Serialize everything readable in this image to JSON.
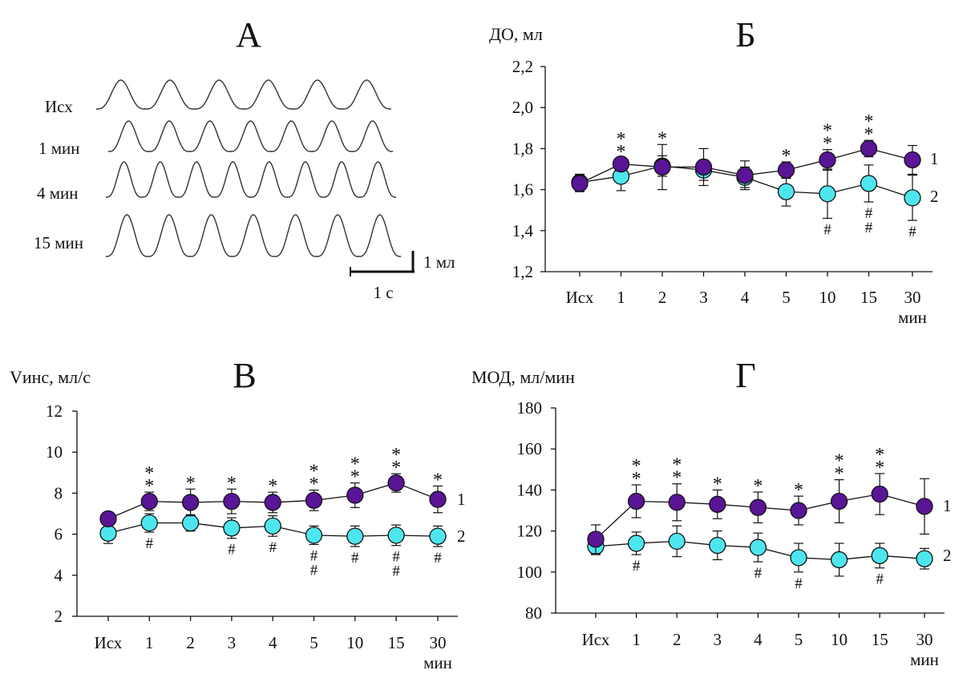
{
  "x_categories": [
    "Исх",
    "1",
    "2",
    "3",
    "4",
    "5",
    "10",
    "15",
    "30"
  ],
  "x_unit": "мин",
  "series_names": [
    "1",
    "2"
  ],
  "colors": {
    "series1": "#5a1496",
    "series2": "#4ee6ee",
    "stroke": "#111111"
  },
  "panel_a": {
    "letter": "А",
    "traces": [
      "Исх",
      "1 мин",
      "4 мин",
      "15 мин"
    ],
    "scale_volume": "1 мл",
    "scale_time": "1 с"
  },
  "chart_data": [
    {
      "id": "b",
      "letter": "Б",
      "type": "line",
      "ylabel": "ДО, мл",
      "yticks": [
        "1,2",
        "1,4",
        "1,6",
        "1,8",
        "2,0",
        "2,2"
      ],
      "ylim": [
        1.2,
        2.2
      ],
      "categories": [
        "Исх",
        "1",
        "2",
        "3",
        "4",
        "5",
        "10",
        "15",
        "30"
      ],
      "series": [
        {
          "name": "1",
          "values": [
            1.63,
            1.725,
            1.71,
            1.71,
            1.67,
            1.695,
            1.745,
            1.8,
            1.745
          ],
          "errors": [
            0.04,
            0.03,
            0.11,
            0.09,
            0.07,
            0.04,
            0.05,
            0.04,
            0.07
          ],
          "marks": [
            "",
            "* *",
            "*",
            "",
            "",
            "*",
            "* *",
            "* *",
            ""
          ]
        },
        {
          "name": "2",
          "values": [
            1.635,
            1.665,
            1.715,
            1.695,
            1.66,
            1.59,
            1.58,
            1.63,
            1.56
          ],
          "errors": [
            0.04,
            0.07,
            0.05,
            0.05,
            0.05,
            0.07,
            0.12,
            0.09,
            0.11
          ],
          "marks": [
            "",
            "",
            "",
            "",
            "",
            "",
            "#",
            "# #",
            "#"
          ]
        }
      ]
    },
    {
      "id": "v",
      "letter": "В",
      "type": "line",
      "ylabel": "Vинс, мл/с",
      "yticks": [
        "2",
        "4",
        "6",
        "8",
        "10",
        "12"
      ],
      "ylim": [
        2,
        12
      ],
      "categories": [
        "Исх",
        "1",
        "2",
        "3",
        "4",
        "5",
        "10",
        "15",
        "30"
      ],
      "series": [
        {
          "name": "1",
          "values": [
            6.75,
            7.6,
            7.55,
            7.6,
            7.55,
            7.65,
            7.9,
            8.5,
            7.7
          ],
          "errors": [
            0.3,
            0.45,
            0.65,
            0.6,
            0.5,
            0.5,
            0.6,
            0.45,
            0.65
          ],
          "marks": [
            "",
            "* *",
            "*",
            "*",
            "*",
            "* *",
            "* *",
            "* *",
            "*"
          ]
        },
        {
          "name": "2",
          "values": [
            6.05,
            6.55,
            6.55,
            6.3,
            6.4,
            5.95,
            5.9,
            5.95,
            5.9
          ],
          "errors": [
            0.5,
            0.45,
            0.4,
            0.5,
            0.5,
            0.45,
            0.5,
            0.5,
            0.5
          ],
          "marks": [
            "",
            "#",
            "",
            "#",
            "#",
            "# #",
            "#",
            "# #",
            "#"
          ]
        }
      ]
    },
    {
      "id": "g",
      "letter": "Г",
      "type": "line",
      "ylabel": "МОД, мл/мин",
      "yticks": [
        "80",
        "100",
        "120",
        "140",
        "160",
        "180"
      ],
      "ylim": [
        80,
        180
      ],
      "categories": [
        "Исх",
        "1",
        "2",
        "3",
        "4",
        "5",
        "10",
        "15",
        "30"
      ],
      "series": [
        {
          "name": "1",
          "values": [
            116,
            134.5,
            134,
            133,
            131.5,
            130,
            134.5,
            138,
            132
          ],
          "errors": [
            7,
            8,
            9,
            7,
            7.5,
            7,
            10.5,
            10,
            13.5
          ],
          "marks": [
            "",
            "* *",
            "* *",
            "*",
            "*",
            "*",
            "* *",
            "* *",
            ""
          ]
        },
        {
          "name": "2",
          "values": [
            112.5,
            114,
            115,
            113,
            112,
            107,
            106,
            108,
            106.5
          ],
          "errors": [
            4,
            5.5,
            7.5,
            7,
            7,
            7,
            8,
            6,
            5
          ],
          "marks": [
            "",
            "#",
            "",
            "",
            "#",
            "#",
            "",
            "#",
            ""
          ]
        }
      ]
    }
  ]
}
